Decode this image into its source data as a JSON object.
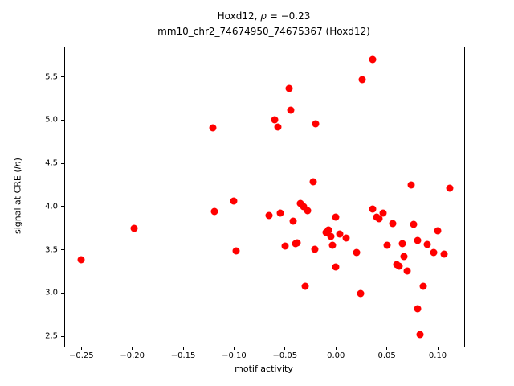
{
  "figure": {
    "title_line1": {
      "prefix": "Hoxd12, ",
      "rho": "ρ",
      "suffix": " = −0.23"
    },
    "title_line2": "mm10_chr2_74674950_74675367 (Hoxd12)",
    "xlabel": "motif activity",
    "ylabel": {
      "prefix": "signal at CRE (",
      "italic": "ln",
      "suffix": ")"
    }
  },
  "chart_data": {
    "type": "scatter",
    "title": "Hoxd12, ρ = −0.23\nmm10_chr2_74674950_74675367 (Hoxd12)",
    "xlabel": "motif activity",
    "ylabel": "signal at CRE (ln)",
    "legend": "none",
    "grid": false,
    "marker_color": "#ff0000",
    "marker_diameter_px": 9,
    "xlim": [
      -0.266,
      0.126
    ],
    "ylim": [
      2.38,
      5.84
    ],
    "xticks": {
      "values": [
        -0.25,
        -0.2,
        -0.15,
        -0.1,
        -0.05,
        0.0,
        0.05,
        0.1
      ],
      "labels": [
        "−0.25",
        "−0.20",
        "−0.15",
        "−0.10",
        "−0.05",
        "0.00",
        "0.05",
        "0.10"
      ]
    },
    "yticks": {
      "values": [
        2.5,
        3.0,
        3.5,
        4.0,
        4.5,
        5.0,
        5.5
      ],
      "labels": [
        "2.5",
        "3.0",
        "3.5",
        "4.0",
        "4.5",
        "5.0",
        "5.5"
      ]
    },
    "points": [
      [
        -0.25,
        3.38
      ],
      [
        -0.198,
        3.75
      ],
      [
        -0.121,
        4.91
      ],
      [
        -0.119,
        3.94
      ],
      [
        -0.1,
        4.06
      ],
      [
        -0.098,
        3.49
      ],
      [
        -0.066,
        3.9
      ],
      [
        -0.06,
        5.0
      ],
      [
        -0.057,
        4.92
      ],
      [
        -0.055,
        3.92
      ],
      [
        -0.05,
        3.54
      ],
      [
        -0.046,
        5.37
      ],
      [
        -0.044,
        5.11
      ],
      [
        -0.042,
        3.83
      ],
      [
        -0.04,
        3.57
      ],
      [
        -0.038,
        3.58
      ],
      [
        -0.035,
        4.04
      ],
      [
        -0.032,
        4.0
      ],
      [
        -0.03,
        3.08
      ],
      [
        -0.028,
        3.95
      ],
      [
        -0.022,
        4.29
      ],
      [
        -0.021,
        3.51
      ],
      [
        -0.02,
        4.96
      ],
      [
        -0.01,
        3.7
      ],
      [
        -0.007,
        3.73
      ],
      [
        -0.005,
        3.65
      ],
      [
        -0.003,
        3.55
      ],
      [
        0.0,
        3.88
      ],
      [
        0.0,
        3.3
      ],
      [
        0.004,
        3.68
      ],
      [
        0.01,
        3.64
      ],
      [
        0.02,
        3.47
      ],
      [
        0.024,
        2.99
      ],
      [
        0.026,
        5.47
      ],
      [
        0.036,
        5.7
      ],
      [
        0.036,
        3.97
      ],
      [
        0.04,
        3.88
      ],
      [
        0.042,
        3.86
      ],
      [
        0.046,
        3.92
      ],
      [
        0.05,
        3.55
      ],
      [
        0.056,
        3.8
      ],
      [
        0.06,
        3.33
      ],
      [
        0.062,
        3.31
      ],
      [
        0.065,
        3.57
      ],
      [
        0.067,
        3.42
      ],
      [
        0.07,
        3.25
      ],
      [
        0.074,
        4.25
      ],
      [
        0.076,
        3.79
      ],
      [
        0.08,
        3.61
      ],
      [
        0.08,
        2.82
      ],
      [
        0.083,
        2.52
      ],
      [
        0.086,
        3.08
      ],
      [
        0.09,
        3.56
      ],
      [
        0.096,
        3.47
      ],
      [
        0.1,
        3.72
      ],
      [
        0.106,
        3.45
      ],
      [
        0.112,
        4.21
      ]
    ]
  }
}
